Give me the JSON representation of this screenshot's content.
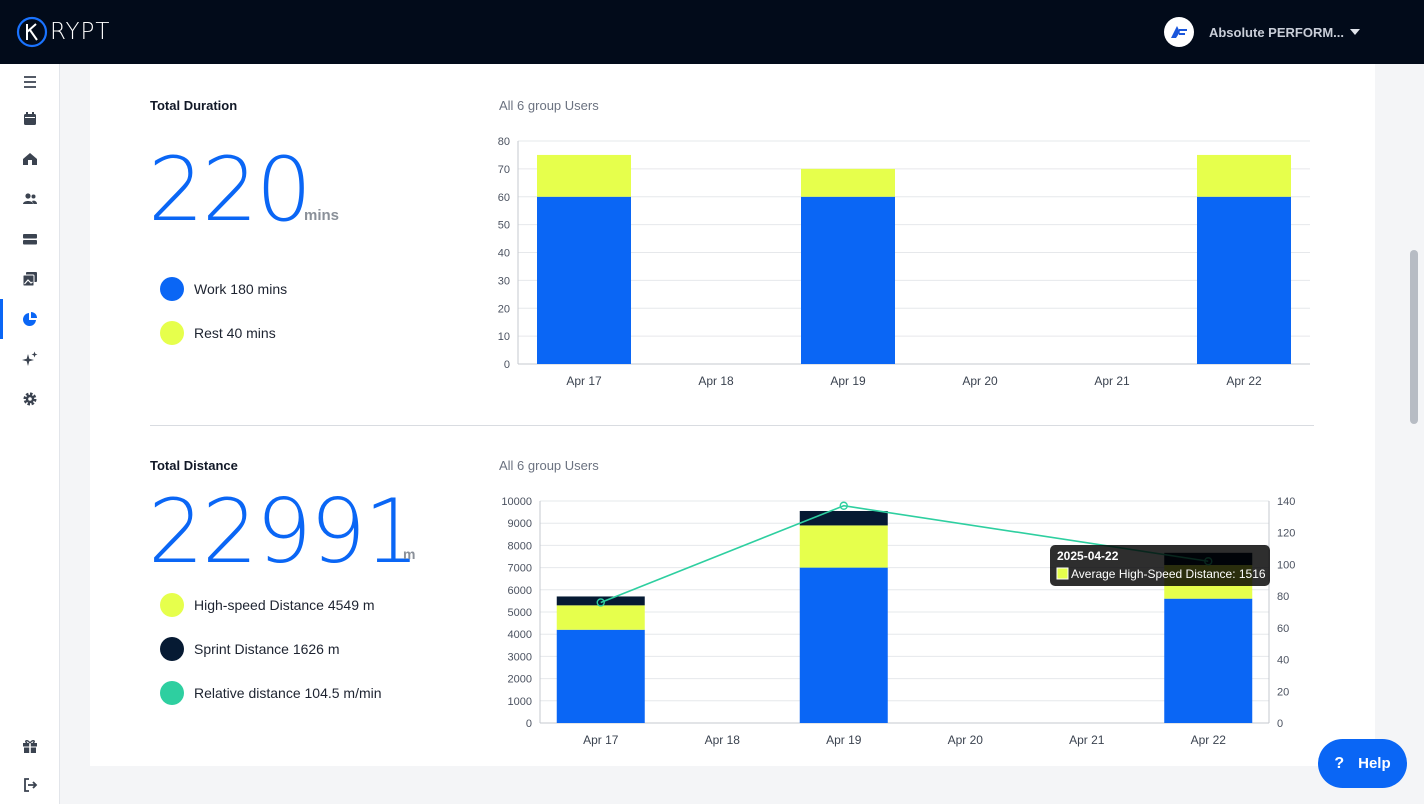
{
  "brand": {
    "logo_text": "RYPT"
  },
  "org": {
    "name": "Absolute PERFORM..."
  },
  "nav": [
    "menu-icon",
    "calendar-icon",
    "home-icon",
    "users-icon",
    "storage-icon",
    "gallery-icon",
    "chart-pie-icon",
    "sparkle-icon",
    "gear-icon",
    "gift-icon",
    "logout-icon"
  ],
  "duration": {
    "title": "Total Duration",
    "group_label": "All 6 group Users",
    "total": "220",
    "unit": "mins",
    "legend": [
      {
        "label": "Work 180 mins",
        "color": "#0a66f5"
      },
      {
        "label": "Rest 40 mins",
        "color": "#e6ff4c"
      }
    ]
  },
  "distance": {
    "title": "Total Distance",
    "group_label": "All 6 group Users",
    "total": "22991",
    "unit": "m",
    "legend": [
      {
        "label": "High-speed Distance 4549 m",
        "color": "#e6ff4c"
      },
      {
        "label": "Sprint Distance 1626 m",
        "color": "#061a33"
      },
      {
        "label": "Relative distance 104.5 m/min",
        "color": "#2ecfa0"
      }
    ]
  },
  "help": {
    "label": "Help"
  },
  "colors": {
    "work": "#0a66f5",
    "rest": "#e6ff4c",
    "sprint": "#061a33",
    "relative": "#2ecfa0"
  },
  "chart_data": [
    {
      "type": "bar",
      "stacked": true,
      "categories": [
        "Apr 17",
        "Apr 18",
        "Apr 19",
        "Apr 20",
        "Apr 21",
        "Apr 22"
      ],
      "series": [
        {
          "values": [
            60,
            0,
            60,
            0,
            0,
            60
          ],
          "color": "#0a66f5"
        },
        {
          "values": [
            15,
            0,
            10,
            0,
            0,
            15
          ],
          "color": "#e6ff4c"
        }
      ],
      "ylim": [
        0,
        80
      ],
      "yticks": [
        0,
        10,
        20,
        30,
        40,
        50,
        60,
        70,
        80
      ],
      "grid": true
    },
    {
      "type": "bar",
      "stacked": true,
      "categories": [
        "Apr 17",
        "Apr 18",
        "Apr 19",
        "Apr 20",
        "Apr 21",
        "Apr 22"
      ],
      "series": [
        {
          "values": [
            4200,
            0,
            7000,
            0,
            0,
            5600
          ],
          "color": "#0a66f5"
        },
        {
          "values": [
            1100,
            0,
            1900,
            0,
            0,
            1516
          ],
          "color": "#e6ff4c"
        },
        {
          "values": [
            400,
            0,
            650,
            0,
            0,
            550
          ],
          "color": "#061a33"
        }
      ],
      "line_series": {
        "axis": "right",
        "color": "#2ecfa0",
        "values": [
          76,
          null,
          137,
          null,
          null,
          102
        ]
      },
      "ylim": [
        0,
        10000
      ],
      "yticks": [
        0,
        1000,
        2000,
        3000,
        4000,
        5000,
        6000,
        7000,
        8000,
        9000,
        10000
      ],
      "y2lim": [
        0,
        140
      ],
      "y2ticks": [
        0,
        20,
        40,
        60,
        80,
        100,
        120,
        140
      ],
      "grid": true,
      "tooltip": {
        "title": "2025-04-22",
        "label": "Average High-Speed Distance: 1516",
        "color": "#e6ff4c"
      }
    }
  ]
}
